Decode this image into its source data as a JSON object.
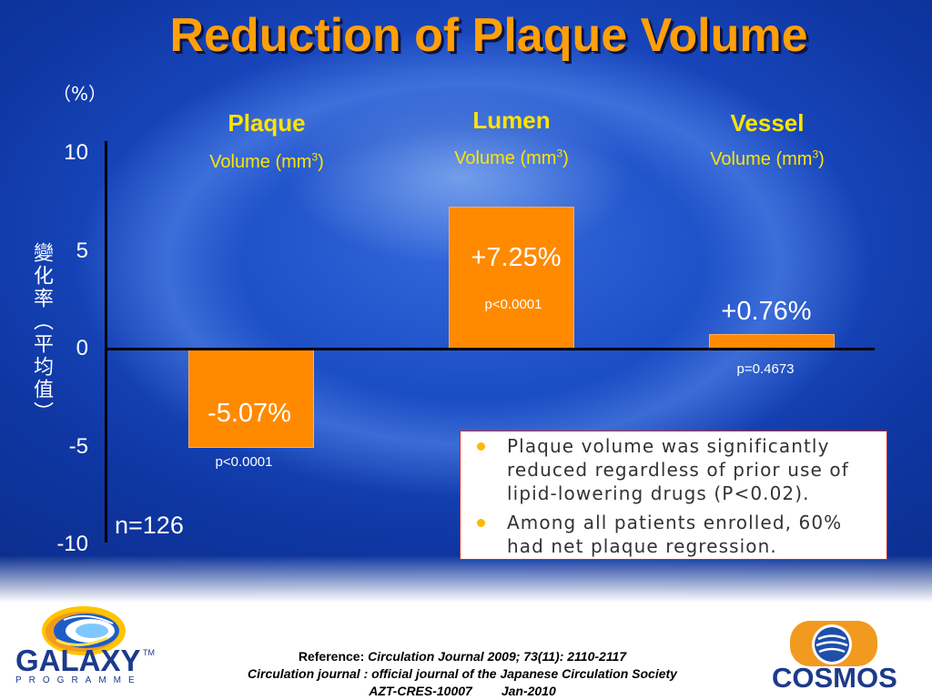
{
  "slide": {
    "n_label": "n=126",
    "bullets": [
      {
        "lines": [
          "Plaque volume was significantly",
          "reduced regardless of prior use of",
          "lipid-lowering drugs (P<0.02)."
        ]
      },
      {
        "lines": [
          "Among all patients enrolled, 60%",
          "had net plaque regression."
        ]
      }
    ],
    "footer": {
      "reference_label": "Reference:",
      "reference_citation": "Circulation Journal 2009; 73(11): 2110-2117",
      "journal_line": "Circulation journal : official journal of the Japanese Circulation Society",
      "document_code": "AZT-CRES-10007",
      "date": "Jan-2010"
    },
    "logos": {
      "galaxy": {
        "name": "GALAXY",
        "trademark": "TM",
        "subtitle": "PROGRAMME"
      },
      "cosmos": {
        "name": "COSMOS"
      }
    },
    "colors": {
      "background": "#1543B8",
      "title": "#FF9F0A",
      "category_label": "#FFE400",
      "bullet": "#FFB800",
      "box_border": "#CC2A2A"
    }
  },
  "chart_data": {
    "type": "bar",
    "title": "Reduction of Plaque Volume",
    "unit_label": "（%）",
    "ylabel": "變化率（平均值）",
    "categories": [
      "Plaque",
      "Lumen",
      "Vessel"
    ],
    "category_units": [
      {
        "text": "Volume (mm",
        "sup": "3",
        "close": ")"
      },
      {
        "text": "Volume (mm",
        "sup": "3",
        "close": ")"
      },
      {
        "text": "Volume (mm",
        "sup": "3",
        "close": ")"
      }
    ],
    "values": [
      -5.07,
      7.25,
      0.76
    ],
    "value_labels": [
      "-5.07%",
      "+7.25%",
      "+0.76%"
    ],
    "p_values": [
      "p<0.0001",
      "p<0.0001",
      "p=0.4673"
    ],
    "ylim": [
      -10,
      10
    ],
    "yticks": [
      10,
      5,
      0,
      -5,
      -10
    ],
    "grid": false,
    "bar_color": "#FF8A00"
  }
}
